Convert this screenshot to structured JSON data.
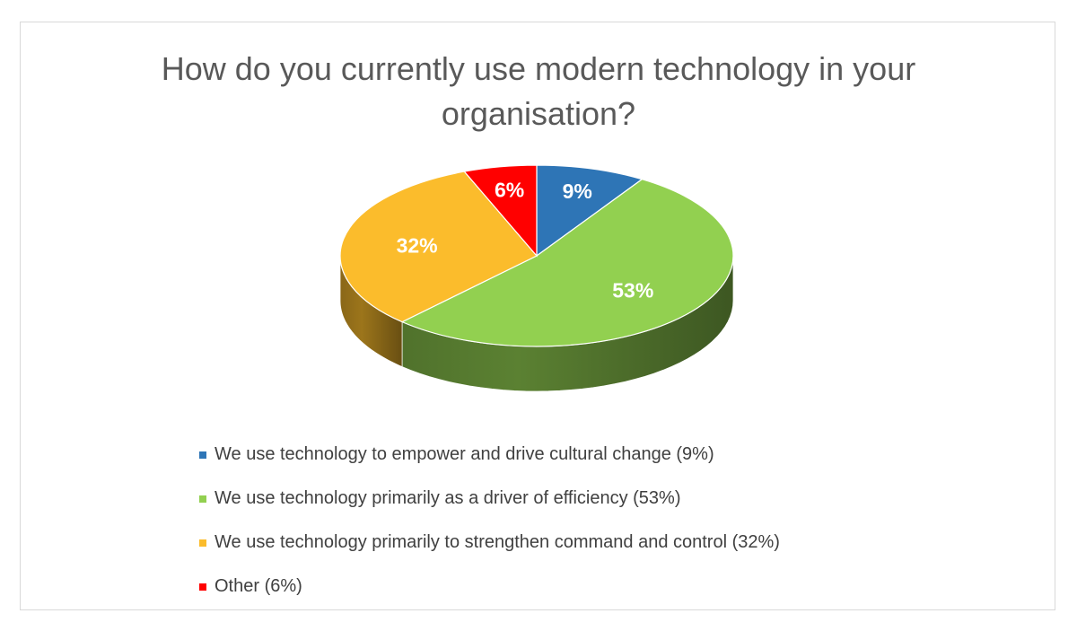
{
  "chart_data": {
    "type": "pie",
    "title_lines": [
      "How do you currently use modern technology in your",
      "organisation?"
    ],
    "legend_position": "bottom",
    "slices": [
      {
        "label": "We use technology to empower and drive cultural change (9%)",
        "value": 9,
        "data_label": "9%",
        "color": "#2e75b6"
      },
      {
        "label": "We use technology primarily as a driver of efficiency (53%)",
        "value": 53,
        "data_label": "53%",
        "color": "#92d050"
      },
      {
        "label": "We use technology primarily to strengthen command and control (32%)",
        "value": 32,
        "data_label": "32%",
        "color": "#fbbc2c"
      },
      {
        "label": "Other (6%)",
        "value": 6,
        "data_label": "6%",
        "color": "#ff0000"
      }
    ]
  }
}
